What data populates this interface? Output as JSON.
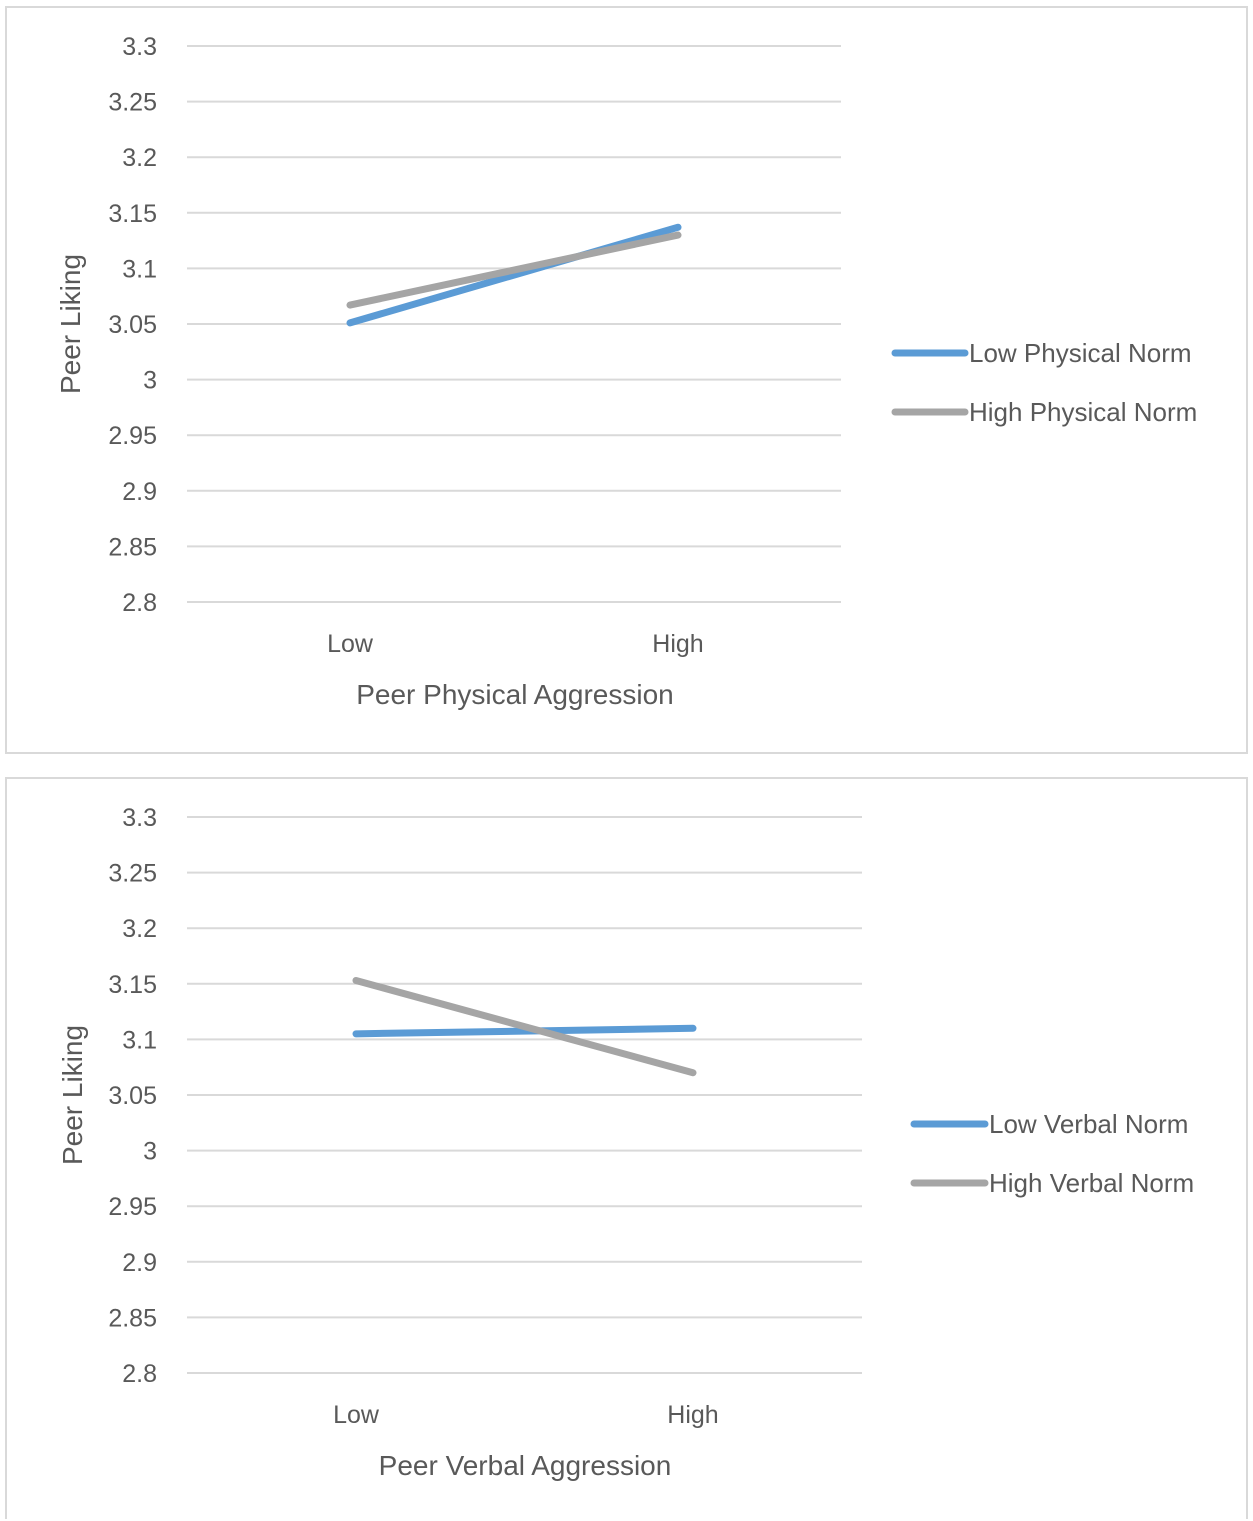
{
  "chart_data": [
    {
      "type": "line",
      "categories": [
        "Low",
        "High"
      ],
      "series": [
        {
          "name": "Low Physical Norm",
          "values": [
            3.051,
            3.137
          ],
          "color": "#5B9BD5"
        },
        {
          "name": "High Physical Norm",
          "values": [
            3.067,
            3.13
          ],
          "color": "#A5A5A5"
        }
      ],
      "xlabel": "Peer Physical Aggression",
      "ylabel": "Peer Liking",
      "ylim": [
        2.8,
        3.3
      ],
      "yticks": [
        "3.3",
        "3.25",
        "3.2",
        "3.15",
        "3.1",
        "3.05",
        "3",
        "2.95",
        "2.9",
        "2.85",
        "2.8"
      ],
      "grid": true,
      "legend": "right"
    },
    {
      "type": "line",
      "categories": [
        "Low",
        "High"
      ],
      "series": [
        {
          "name": "Low Verbal Norm",
          "values": [
            3.105,
            3.11
          ],
          "color": "#5B9BD5"
        },
        {
          "name": "High Verbal Norm",
          "values": [
            3.153,
            3.07
          ],
          "color": "#A5A5A5"
        }
      ],
      "xlabel": "Peer Verbal Aggression",
      "ylabel": "Peer Liking",
      "ylim": [
        2.8,
        3.3
      ],
      "yticks": [
        "3.3",
        "3.25",
        "3.2",
        "3.15",
        "3.1",
        "3.05",
        "3",
        "2.95",
        "2.9",
        "2.85",
        "2.8"
      ],
      "grid": true,
      "legend": "right"
    }
  ]
}
